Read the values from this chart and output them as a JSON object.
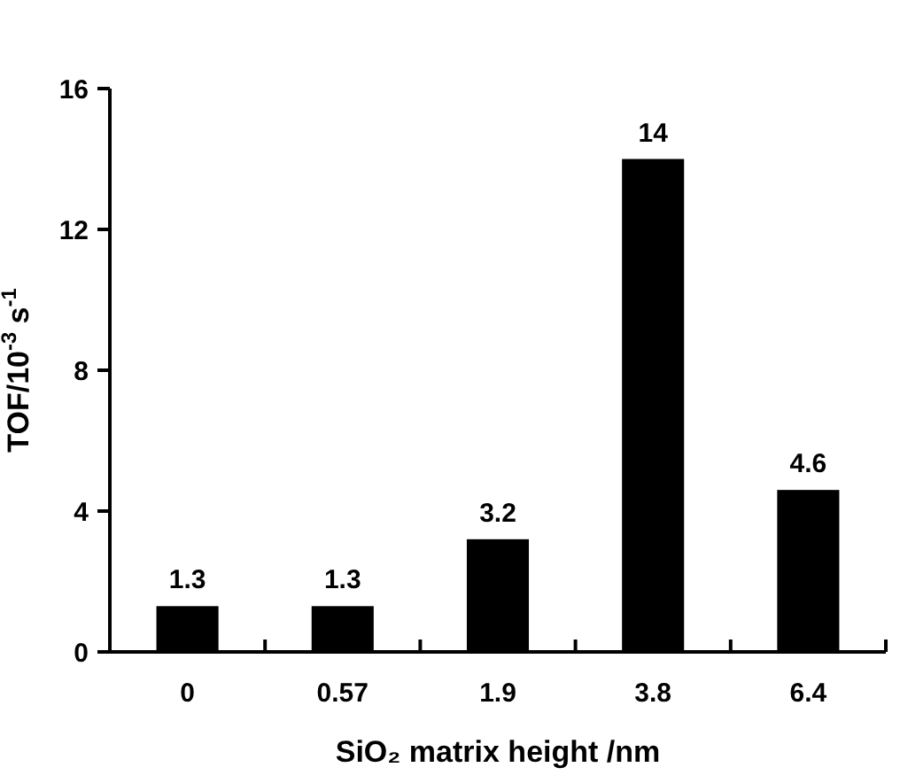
{
  "chart_data": {
    "type": "bar",
    "xlabel": "SiO₂ matrix height /nm",
    "ylabel": "TOF/10$^{-3}$ s$^{-1}$",
    "categories": [
      "0",
      "0.57",
      "1.9",
      "3.8",
      "6.4"
    ],
    "values": [
      1.3,
      1.3,
      3.2,
      14,
      4.6
    ],
    "color": "#000000",
    "ylim": [
      0,
      16
    ],
    "yticks": [
      0,
      4,
      8,
      12,
      16
    ],
    "data_labels": true,
    "grid": false
  }
}
